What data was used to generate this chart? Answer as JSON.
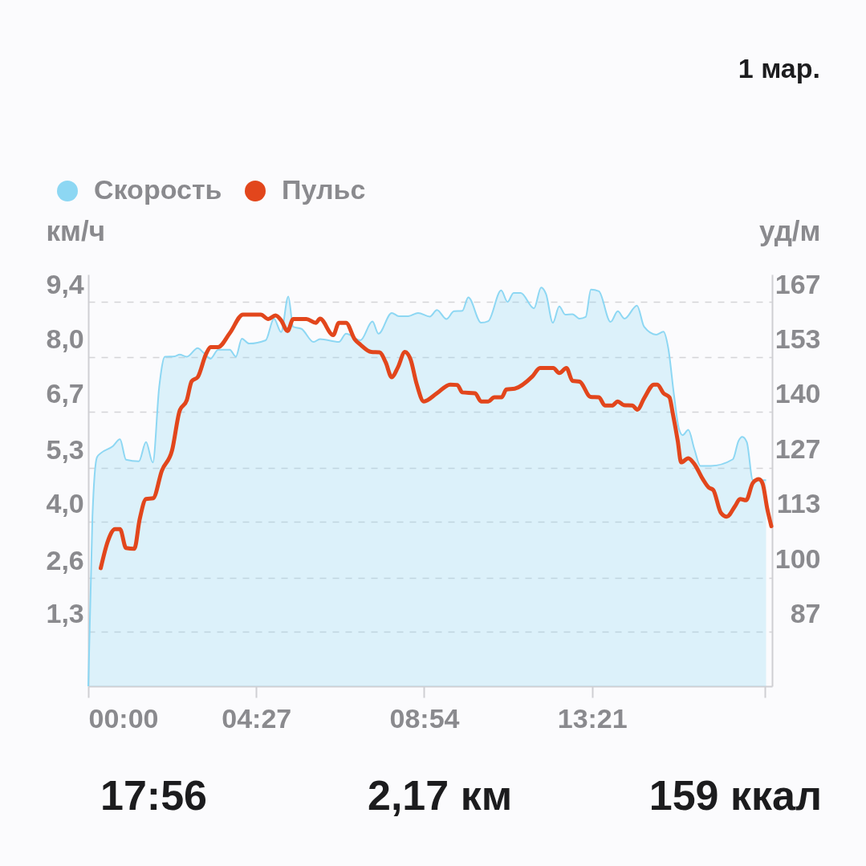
{
  "chart_data": {
    "type": "line",
    "ylabel": "км/ч",
    "y2label": "уд/м",
    "annotations": [
      "1 мар.",
      "17:56",
      "2,17 км",
      "159 ккал"
    ],
    "legend": "top left",
    "grid": "y",
    "xlim": [
      0,
      18.12
    ],
    "xticks": [
      {
        "value": 0,
        "label": "00:00"
      },
      {
        "value": 4.45,
        "label": "04:27"
      },
      {
        "value": 8.9,
        "label": "08:54"
      },
      {
        "value": 13.35,
        "label": "13:21"
      },
      {
        "value": 17.933,
        "label": null
      }
    ],
    "ylim": [
      0,
      10.07
    ],
    "yticks": [
      {
        "value": 1.343,
        "label": "1,3"
      },
      {
        "value": 2.649,
        "label": "2,6"
      },
      {
        "value": 4.029,
        "label": "4,0"
      },
      {
        "value": 5.349,
        "label": "5,3"
      },
      {
        "value": 6.714,
        "label": "6,7"
      },
      {
        "value": 8.049,
        "label": "8,0"
      },
      {
        "value": 9.4,
        "label": "9,4"
      }
    ],
    "y2lim": [
      73.33,
      173.33
    ],
    "y2ticks": [
      {
        "value": 86.67,
        "label": "87"
      },
      100,
      {
        "value": 113.33,
        "label": "113"
      },
      {
        "value": 126.67,
        "label": "127"
      },
      140,
      {
        "value": 153.33,
        "label": "153"
      },
      {
        "value": 166.67,
        "label": "167"
      }
    ],
    "series": [
      {
        "name": "Скорость",
        "type": "area",
        "color": "#8dd7f3",
        "x": [
          0,
          0.11,
          0.23,
          0.33,
          0.65,
          0.84,
          1.0,
          1.34,
          1.53,
          1.71,
          1.88,
          2.03,
          2.29,
          2.42,
          2.61,
          2.9,
          3.05,
          3.24,
          3.44,
          3.75,
          3.91,
          4.07,
          4.26,
          4.7,
          4.92,
          5.11,
          5.3,
          5.43,
          5.65,
          5.97,
          6.14,
          6.64,
          6.83,
          7.21,
          7.53,
          7.69,
          8.04,
          8.23,
          8.48,
          8.74,
          9.05,
          9.24,
          9.49,
          9.69,
          9.91,
          10.07,
          10.41,
          10.6,
          10.94,
          11.11,
          11.27,
          11.46,
          11.81,
          12.0,
          12.13,
          12.31,
          12.48,
          12.64,
          12.83,
          13.02,
          13.18,
          13.32,
          13.53,
          13.84,
          14.03,
          14.21,
          14.54,
          14.73,
          15.05,
          15.24,
          15.37,
          15.52,
          15.65,
          15.75,
          15.9,
          16.06,
          16.22,
          16.5,
          17.08,
          17.23,
          17.33,
          17.45,
          17.61,
          17.96
        ],
        "values": [
          0,
          4.14,
          5.6,
          5.7,
          5.87,
          6.04,
          5.54,
          5.5,
          5.97,
          5.47,
          7.33,
          8.06,
          8.07,
          8.11,
          8.06,
          8.27,
          8.16,
          8.01,
          8.23,
          8.23,
          8.06,
          8.5,
          8.38,
          8.46,
          8.99,
          8.66,
          9.53,
          8.79,
          8.74,
          8.42,
          8.49,
          8.42,
          8.62,
          8.46,
          8.92,
          8.62,
          9.13,
          9.05,
          9.05,
          9.13,
          9.04,
          9.2,
          8.98,
          9.17,
          9.18,
          9.51,
          8.89,
          8.93,
          9.68,
          9.4,
          9.62,
          9.62,
          9.24,
          9.75,
          9.59,
          8.89,
          9.29,
          9.09,
          9.1,
          8.99,
          9.03,
          9.7,
          9.66,
          8.91,
          9.17,
          8.99,
          9.31,
          8.79,
          8.6,
          8.67,
          8.26,
          7.13,
          6.3,
          6.14,
          6.27,
          5.8,
          5.39,
          5.39,
          5.55,
          6.0,
          6.1,
          5.97,
          5.04,
          5.04
        ]
      },
      {
        "name": "Пульс",
        "axis": "y2",
        "color": "#e2461c",
        "x": [
          0.33,
          0.52,
          0.71,
          0.84,
          1.0,
          1.22,
          1.36,
          1.53,
          1.72,
          1.95,
          2.22,
          2.42,
          2.61,
          2.74,
          2.9,
          3.12,
          3.24,
          3.44,
          3.75,
          4.1,
          4.57,
          4.77,
          4.96,
          5.11,
          5.28,
          5.43,
          5.78,
          6.03,
          6.14,
          6.49,
          6.64,
          6.83,
          7.06,
          7.21,
          7.5,
          7.72,
          7.88,
          8.04,
          8.2,
          8.39,
          8.54,
          8.7,
          8.89,
          9.24,
          9.59,
          9.78,
          9.91,
          10.25,
          10.41,
          10.6,
          10.76,
          10.95,
          11.08,
          11.3,
          11.77,
          11.97,
          12.32,
          12.48,
          12.67,
          12.83,
          13.02,
          13.31,
          13.53,
          13.69,
          13.88,
          14.03,
          14.19,
          14.42,
          14.55,
          14.73,
          14.99,
          15.08,
          15.24,
          15.4,
          15.49,
          15.62,
          15.71,
          15.9,
          16.06,
          16.28,
          16.44,
          16.56,
          16.76,
          16.92,
          17.14,
          17.27,
          17.43,
          17.61,
          17.77,
          17.87,
          17.99,
          18.1
        ],
        "values": [
          102.0,
          108.6,
          111.5,
          111.5,
          106.9,
          106.7,
          113.8,
          118.8,
          119.0,
          125.7,
          130.6,
          140.2,
          142.8,
          147.4,
          148.4,
          154.0,
          155.7,
          155.7,
          159.1,
          163.6,
          163.6,
          162.5,
          163.4,
          162.2,
          159.6,
          162.5,
          162.5,
          161.6,
          162.6,
          158.6,
          161.6,
          161.6,
          157.6,
          156.3,
          154.5,
          154.4,
          152.0,
          148.4,
          150.7,
          154.5,
          152.7,
          146.8,
          142.5,
          144.5,
          146.6,
          146.5,
          144.7,
          144.5,
          142.5,
          142.5,
          143.5,
          143.5,
          145.4,
          145.6,
          148.6,
          150.6,
          150.6,
          149.4,
          150.6,
          147.5,
          147.3,
          143.6,
          143.5,
          141.5,
          141.5,
          142.5,
          141.6,
          141.5,
          140.5,
          143.3,
          146.6,
          146.6,
          144.5,
          143.5,
          139.5,
          132.9,
          127.7,
          128.7,
          127.3,
          123.7,
          121.6,
          121.0,
          115.5,
          114.5,
          117.1,
          118.8,
          118.5,
          122.7,
          123.6,
          122.5,
          116.5,
          112.2
        ]
      }
    ]
  }
}
